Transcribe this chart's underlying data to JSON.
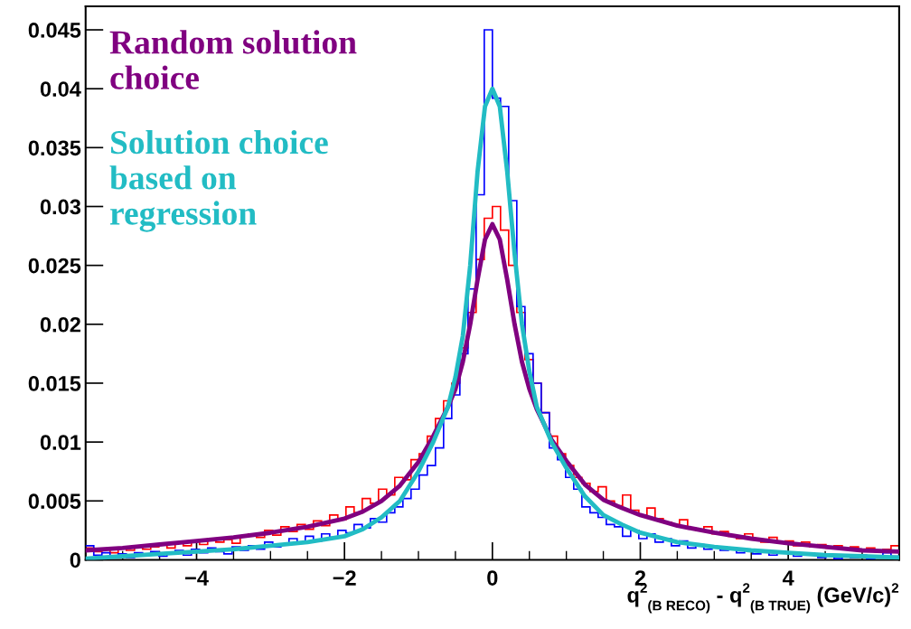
{
  "chart_data": {
    "type": "histogram",
    "xlabel": "q$^{2}$$_{(B RECO)}$ - q$^{2}$$_{(B TRUE)}$ (GeV/c)$^{2}$",
    "xlim": [
      -5.5,
      5.5
    ],
    "xticks": [
      {
        "value": -4,
        "label": "−4"
      },
      {
        "value": -2,
        "label": "−2"
      },
      0,
      2,
      4
    ],
    "ylim": [
      0,
      0.047
    ],
    "yticks": [
      0,
      0.005,
      0.01,
      0.015,
      0.02,
      0.025,
      0.03,
      0.035,
      0.04,
      0.045
    ],
    "grid": false,
    "legend": "top left",
    "bins": [
      -5.5,
      -5.39,
      -5.28,
      -5.17,
      -5.06,
      -4.95,
      -4.84,
      -4.73,
      -4.62,
      -4.51,
      -4.4,
      -4.29,
      -4.18,
      -4.07,
      -3.96,
      -3.85,
      -3.74,
      -3.63,
      -3.52,
      -3.41,
      -3.3,
      -3.19,
      -3.08,
      -2.97,
      -2.86,
      -2.75,
      -2.64,
      -2.53,
      -2.42,
      -2.31,
      -2.2,
      -2.09,
      -1.98,
      -1.87,
      -1.76,
      -1.65,
      -1.54,
      -1.43,
      -1.32,
      -1.21,
      -1.1,
      -0.99,
      -0.88,
      -0.77,
      -0.66,
      -0.55,
      -0.44,
      -0.33,
      -0.22,
      -0.11,
      0,
      0.11,
      0.22,
      0.33,
      0.44,
      0.55,
      0.66,
      0.77,
      0.88,
      0.99,
      1.1,
      1.21,
      1.32,
      1.43,
      1.54,
      1.65,
      1.76,
      1.87,
      1.98,
      2.09,
      2.2,
      2.31,
      2.42,
      2.53,
      2.64,
      2.75,
      2.86,
      2.97,
      3.08,
      3.19,
      3.3,
      3.41,
      3.52,
      3.63,
      3.74,
      3.85,
      3.96,
      4.07,
      4.18,
      4.29,
      4.4,
      4.51,
      4.62,
      4.73,
      4.84,
      4.95,
      5.06,
      5.17,
      5.28,
      5.39,
      5.5
    ],
    "series": [
      {
        "color": "#ff0000",
        "values": [
          0.001,
          0.0007,
          0.0009,
          0.0006,
          0.001,
          0.0008,
          0.0012,
          0.0009,
          0.0011,
          0.0013,
          0.001,
          0.0014,
          0.0012,
          0.0016,
          0.0013,
          0.0018,
          0.0015,
          0.0017,
          0.0014,
          0.002,
          0.0022,
          0.0019,
          0.0025,
          0.0021,
          0.0028,
          0.0024,
          0.003,
          0.0026,
          0.0033,
          0.0029,
          0.0038,
          0.0034,
          0.0045,
          0.004,
          0.0052,
          0.0048,
          0.006,
          0.0055,
          0.007,
          0.0068,
          0.0085,
          0.009,
          0.0105,
          0.012,
          0.0135,
          0.015,
          0.018,
          0.021,
          0.0255,
          0.029,
          0.03,
          0.028,
          0.025,
          0.021,
          0.017,
          0.015,
          0.0125,
          0.0105,
          0.009,
          0.008,
          0.007,
          0.0065,
          0.0058,
          0.0062,
          0.005,
          0.0046,
          0.0055,
          0.0042,
          0.0038,
          0.0044,
          0.0035,
          0.0032,
          0.003,
          0.0034,
          0.0027,
          0.0025,
          0.0028,
          0.0022,
          0.0024,
          0.002,
          0.0018,
          0.0022,
          0.0017,
          0.0015,
          0.0019,
          0.0014,
          0.0016,
          0.0012,
          0.0015,
          0.0011,
          0.0013,
          0.001,
          0.0012,
          0.0009,
          0.0011,
          0.0008,
          0.001,
          0.0007,
          0.0009,
          0.0012
        ]
      },
      {
        "color": "#0000ff",
        "values": [
          0.0012,
          0.0004,
          0.0006,
          0.0003,
          0.0005,
          0.0002,
          0.0006,
          0.0004,
          0.0007,
          0.0003,
          0.0005,
          0.0008,
          0.0004,
          0.0009,
          0.0006,
          0.001,
          0.0007,
          0.0005,
          0.0011,
          0.0008,
          0.0012,
          0.0009,
          0.0015,
          0.0011,
          0.0013,
          0.0018,
          0.0014,
          0.002,
          0.0016,
          0.0022,
          0.0019,
          0.0025,
          0.0023,
          0.003,
          0.0027,
          0.0035,
          0.0032,
          0.004,
          0.0045,
          0.0052,
          0.006,
          0.0072,
          0.008,
          0.0095,
          0.012,
          0.014,
          0.0175,
          0.023,
          0.031,
          0.045,
          0.0392,
          0.0385,
          0.0305,
          0.0215,
          0.0175,
          0.015,
          0.0125,
          0.0095,
          0.0085,
          0.007,
          0.006,
          0.0045,
          0.004,
          0.0036,
          0.003,
          0.0028,
          0.002,
          0.0025,
          0.0018,
          0.0022,
          0.0015,
          0.0018,
          0.0012,
          0.0016,
          0.001,
          0.0013,
          0.0009,
          0.0011,
          0.0008,
          0.001,
          0.0006,
          0.0009,
          0.0005,
          0.0008,
          0.0004,
          0.0007,
          0.0006,
          0.0003,
          0.0005,
          0.0004,
          0.0002,
          0.0004,
          0.0001,
          0.0003,
          0.0002,
          0.0004,
          0.0001,
          0.0002,
          0.0006,
          0.0003
        ]
      },
      {
        "type": "line",
        "name": "Random solution\nchoice",
        "color": "#800080",
        "x": [
          -5.5,
          -5,
          -4.5,
          -4,
          -3.5,
          -3,
          -2.5,
          -2,
          -1.75,
          -1.5,
          -1.25,
          -1,
          -0.8,
          -0.6,
          -0.5,
          -0.4,
          -0.3,
          -0.2,
          -0.1,
          0,
          0.1,
          0.2,
          0.3,
          0.4,
          0.5,
          0.6,
          0.8,
          1,
          1.25,
          1.5,
          1.75,
          2,
          2.5,
          3,
          3.5,
          4,
          4.5,
          5,
          5.5
        ],
        "values": [
          0.0008,
          0.001,
          0.0013,
          0.0016,
          0.0019,
          0.0023,
          0.0028,
          0.0035,
          0.0041,
          0.005,
          0.0063,
          0.0083,
          0.0105,
          0.013,
          0.0145,
          0.0168,
          0.02,
          0.0238,
          0.0272,
          0.0285,
          0.0272,
          0.0238,
          0.02,
          0.0168,
          0.0145,
          0.0128,
          0.0102,
          0.0084,
          0.0064,
          0.0051,
          0.0044,
          0.0038,
          0.0029,
          0.0023,
          0.0018,
          0.0014,
          0.0011,
          0.0008,
          0.0007
        ]
      },
      {
        "type": "line",
        "name": "Solution choice\nbased on\nregression",
        "color": "#22bcc4",
        "x": [
          -5.5,
          -5,
          -4.5,
          -4,
          -3.5,
          -3,
          -2.5,
          -2,
          -1.75,
          -1.5,
          -1.25,
          -1,
          -0.8,
          -0.6,
          -0.5,
          -0.4,
          -0.3,
          -0.2,
          -0.1,
          0,
          0.1,
          0.2,
          0.3,
          0.4,
          0.5,
          0.6,
          0.8,
          1,
          1.25,
          1.5,
          1.75,
          2,
          2.5,
          3,
          3.5,
          4,
          4.5,
          5,
          5.5
        ],
        "values": [
          0.0001,
          0.0003,
          0.0005,
          0.0007,
          0.0009,
          0.0012,
          0.0015,
          0.002,
          0.0026,
          0.0036,
          0.005,
          0.0075,
          0.01,
          0.013,
          0.0155,
          0.019,
          0.025,
          0.033,
          0.0385,
          0.04,
          0.0385,
          0.033,
          0.026,
          0.02,
          0.016,
          0.013,
          0.01,
          0.0078,
          0.0054,
          0.0038,
          0.003,
          0.0023,
          0.0015,
          0.0011,
          0.0008,
          0.0006,
          0.0004,
          0.0003,
          0.0002
        ]
      }
    ]
  }
}
